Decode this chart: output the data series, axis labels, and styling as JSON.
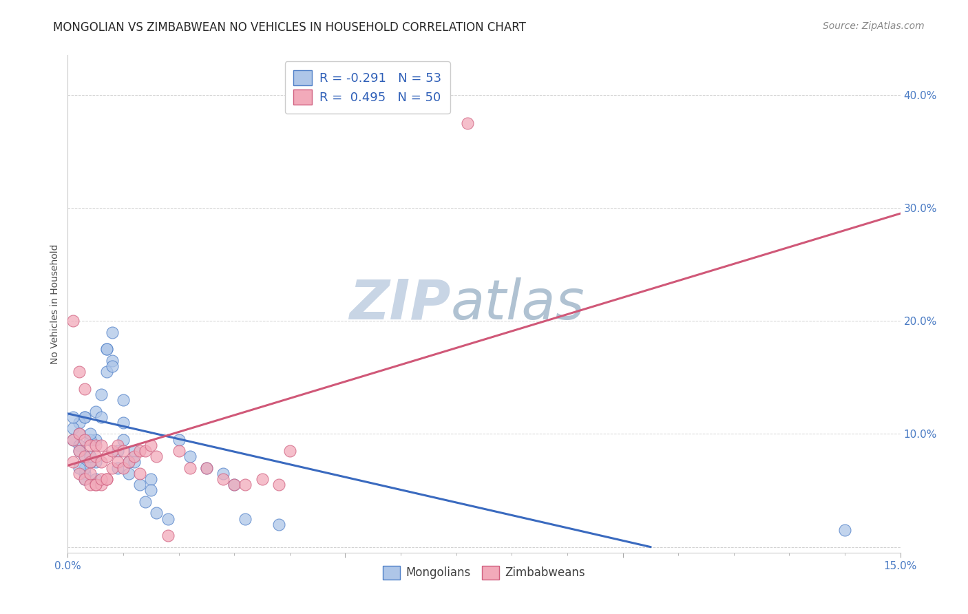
{
  "title": "MONGOLIAN VS ZIMBABWEAN NO VEHICLES IN HOUSEHOLD CORRELATION CHART",
  "source": "Source: ZipAtlas.com",
  "ylabel": "No Vehicles in Household",
  "ytick_labels": [
    "",
    "10.0%",
    "20.0%",
    "30.0%",
    "40.0%"
  ],
  "ytick_values": [
    0.0,
    0.1,
    0.2,
    0.3,
    0.4
  ],
  "xlim": [
    0.0,
    0.15
  ],
  "ylim": [
    -0.005,
    0.435
  ],
  "legend_r_mongolian": "R = -0.291",
  "legend_n_mongolian": "N = 53",
  "legend_r_zimbabwean": "R =  0.495",
  "legend_n_zimbabwean": "N = 50",
  "mongolian_color": "#aec6e8",
  "zimbabwean_color": "#f2aaba",
  "mongolian_edge_color": "#5080c8",
  "zimbabwean_edge_color": "#d06080",
  "mongolian_line_color": "#3a6abf",
  "zimbabwean_line_color": "#d05878",
  "background_color": "#ffffff",
  "watermark_zip_color": "#c8d8e8",
  "watermark_atlas_color": "#b8ccd8",
  "title_fontsize": 12,
  "source_fontsize": 10,
  "axis_label_fontsize": 10,
  "tick_fontsize": 11,
  "legend_fontsize": 13,
  "mongolians_x": [
    0.005,
    0.003,
    0.007,
    0.008,
    0.002,
    0.003,
    0.003,
    0.004,
    0.004,
    0.005,
    0.005,
    0.006,
    0.007,
    0.008,
    0.009,
    0.01,
    0.01,
    0.011,
    0.011,
    0.012,
    0.013,
    0.014,
    0.015,
    0.016,
    0.018,
    0.02,
    0.022,
    0.025,
    0.028,
    0.03,
    0.032,
    0.038,
    0.001,
    0.001,
    0.002,
    0.002,
    0.003,
    0.003,
    0.004,
    0.001,
    0.002,
    0.002,
    0.003,
    0.004,
    0.005,
    0.006,
    0.007,
    0.008,
    0.009,
    0.01,
    0.012,
    0.015,
    0.14
  ],
  "mongolians_y": [
    0.095,
    0.115,
    0.175,
    0.19,
    0.11,
    0.08,
    0.065,
    0.095,
    0.1,
    0.12,
    0.075,
    0.135,
    0.175,
    0.165,
    0.085,
    0.13,
    0.095,
    0.075,
    0.065,
    0.085,
    0.055,
    0.04,
    0.06,
    0.03,
    0.025,
    0.095,
    0.08,
    0.07,
    0.065,
    0.055,
    0.025,
    0.02,
    0.105,
    0.095,
    0.1,
    0.09,
    0.07,
    0.06,
    0.075,
    0.115,
    0.085,
    0.07,
    0.115,
    0.08,
    0.06,
    0.115,
    0.155,
    0.16,
    0.07,
    0.11,
    0.075,
    0.05,
    0.015
  ],
  "zimbabweans_x": [
    0.001,
    0.001,
    0.002,
    0.002,
    0.002,
    0.003,
    0.003,
    0.003,
    0.004,
    0.004,
    0.004,
    0.005,
    0.005,
    0.005,
    0.006,
    0.006,
    0.006,
    0.007,
    0.007,
    0.008,
    0.008,
    0.009,
    0.009,
    0.01,
    0.01,
    0.011,
    0.012,
    0.013,
    0.013,
    0.014,
    0.015,
    0.016,
    0.018,
    0.02,
    0.022,
    0.025,
    0.028,
    0.03,
    0.032,
    0.035,
    0.038,
    0.001,
    0.002,
    0.003,
    0.004,
    0.005,
    0.006,
    0.007,
    0.072,
    0.04
  ],
  "zimbabweans_y": [
    0.095,
    0.075,
    0.1,
    0.085,
    0.065,
    0.095,
    0.08,
    0.06,
    0.09,
    0.075,
    0.055,
    0.09,
    0.08,
    0.055,
    0.09,
    0.075,
    0.055,
    0.08,
    0.06,
    0.085,
    0.07,
    0.09,
    0.075,
    0.085,
    0.07,
    0.075,
    0.08,
    0.085,
    0.065,
    0.085,
    0.09,
    0.08,
    0.01,
    0.085,
    0.07,
    0.07,
    0.06,
    0.055,
    0.055,
    0.06,
    0.055,
    0.2,
    0.155,
    0.14,
    0.065,
    0.055,
    0.06,
    0.06,
    0.375,
    0.085
  ],
  "mongolian_trend_x": [
    0.0,
    0.105
  ],
  "mongolian_trend_y": [
    0.118,
    0.0
  ],
  "zimbabwean_trend_x": [
    0.0,
    0.15
  ],
  "zimbabwean_trend_y": [
    0.072,
    0.295
  ]
}
